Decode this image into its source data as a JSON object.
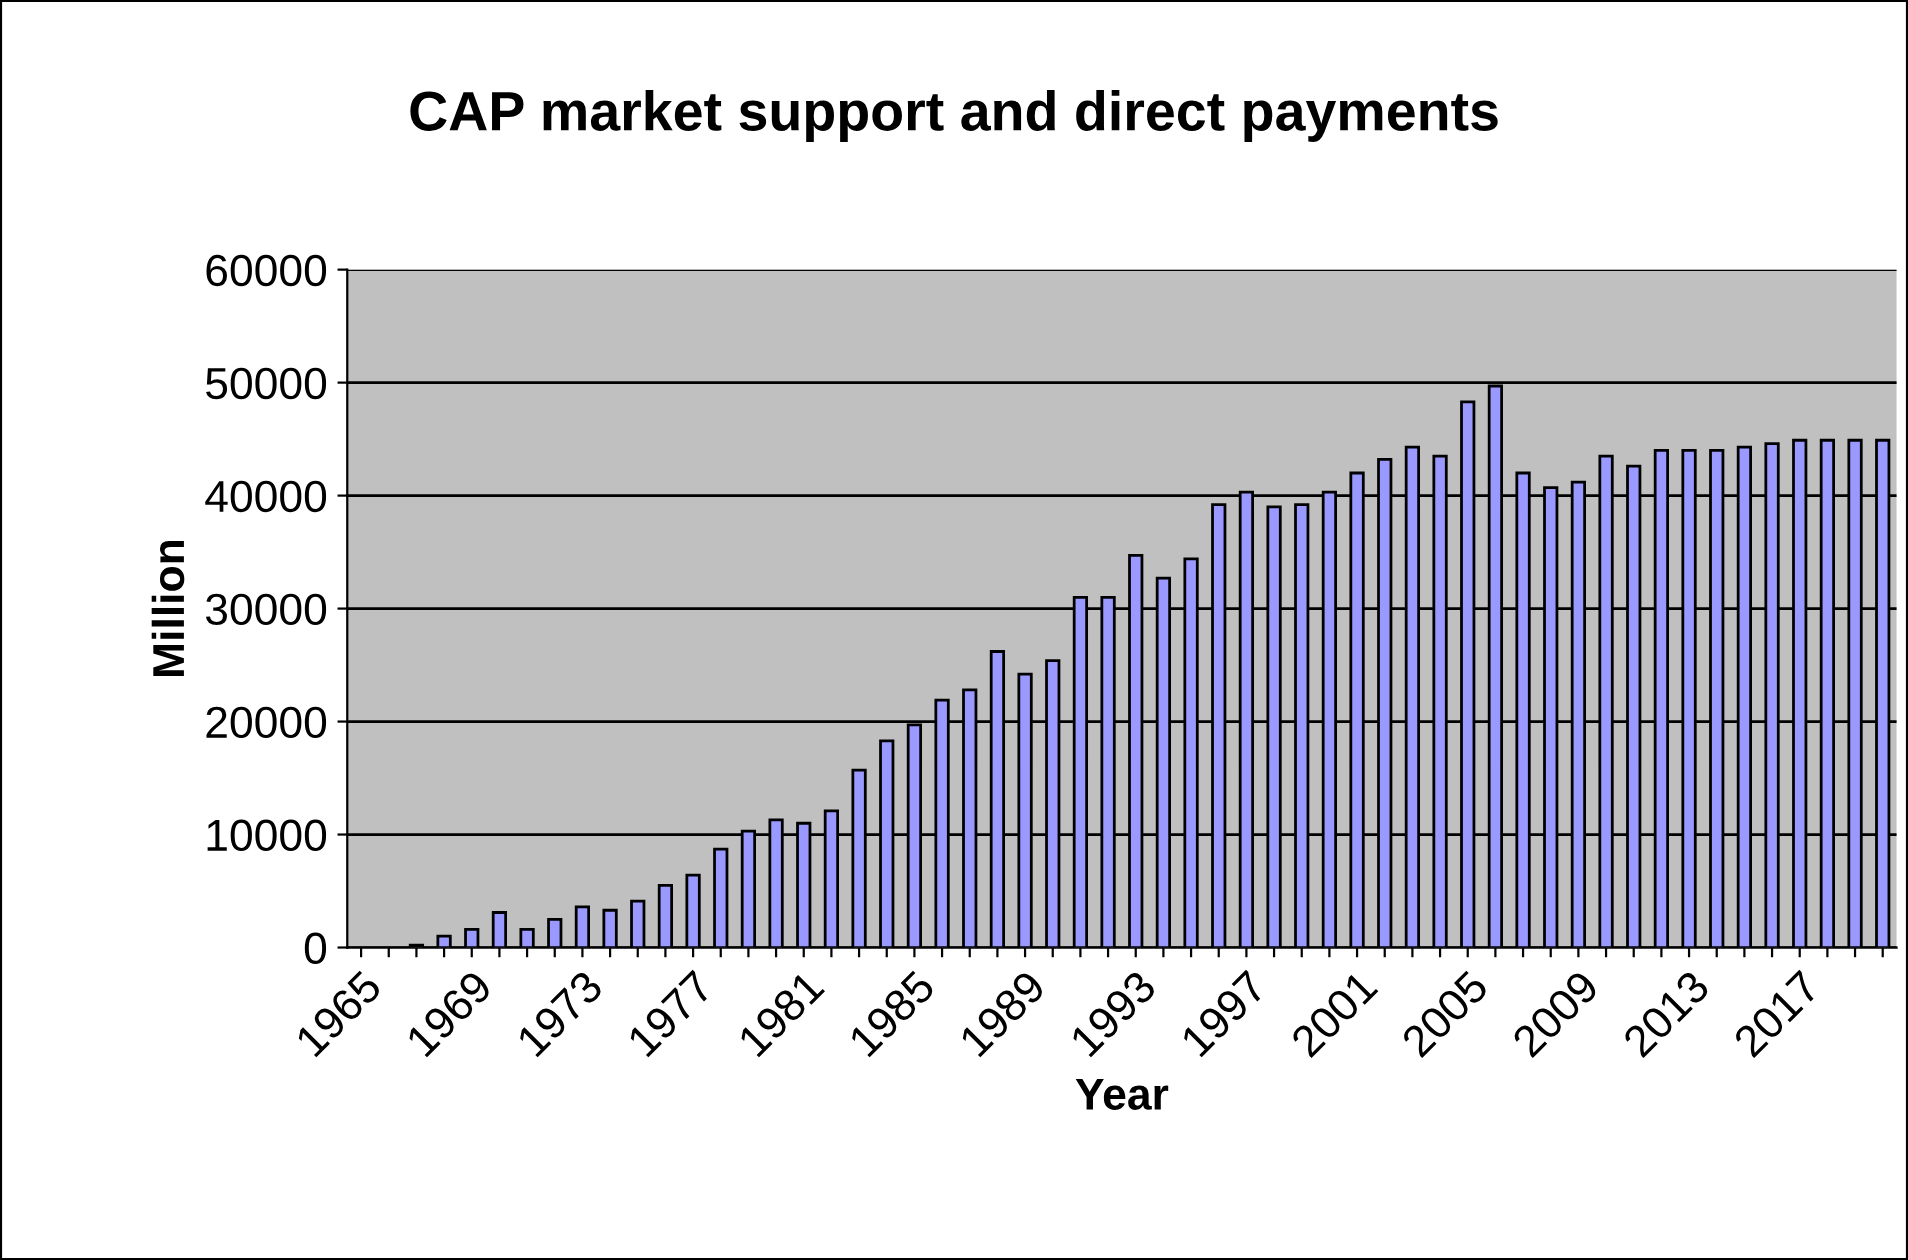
{
  "chart_data": {
    "type": "bar",
    "title": "CAP market support and direct payments",
    "xlabel": "Year",
    "ylabel": "Million",
    "categories": [
      "1965",
      null,
      null,
      null,
      "1969",
      null,
      null,
      null,
      "1973",
      null,
      null,
      null,
      "1977",
      null,
      null,
      null,
      "1981",
      null,
      null,
      null,
      "1985",
      null,
      null,
      null,
      "1989",
      null,
      null,
      null,
      "1993",
      null,
      null,
      null,
      "1997",
      null,
      null,
      null,
      "2001",
      null,
      null,
      null,
      "2005",
      null,
      null,
      null,
      "2009",
      null,
      null,
      null,
      "2013",
      null,
      null,
      null,
      "2017",
      null,
      null,
      null
    ],
    "values": [
      null,
      null,
      200,
      1000,
      1600,
      3100,
      1600,
      2500,
      3600,
      3300,
      4100,
      5500,
      6400,
      8700,
      10300,
      11300,
      11000,
      12100,
      15700,
      18300,
      19700,
      21900,
      22800,
      26200,
      24200,
      25400,
      31000,
      31000,
      34700,
      32700,
      34400,
      39200,
      40300,
      39000,
      39200,
      40300,
      42000,
      43200,
      44300,
      43500,
      48300,
      49700,
      42000,
      40700,
      41200,
      43500,
      42600,
      44000,
      44000,
      44000,
      44300,
      44600,
      44900,
      44900,
      44900,
      44900
    ],
    "color": "#9999ff",
    "ylim": [
      0,
      60000
    ],
    "yticks": [
      0,
      10000,
      20000,
      30000,
      40000,
      50000,
      60000
    ],
    "grid": "y",
    "legend": false
  }
}
